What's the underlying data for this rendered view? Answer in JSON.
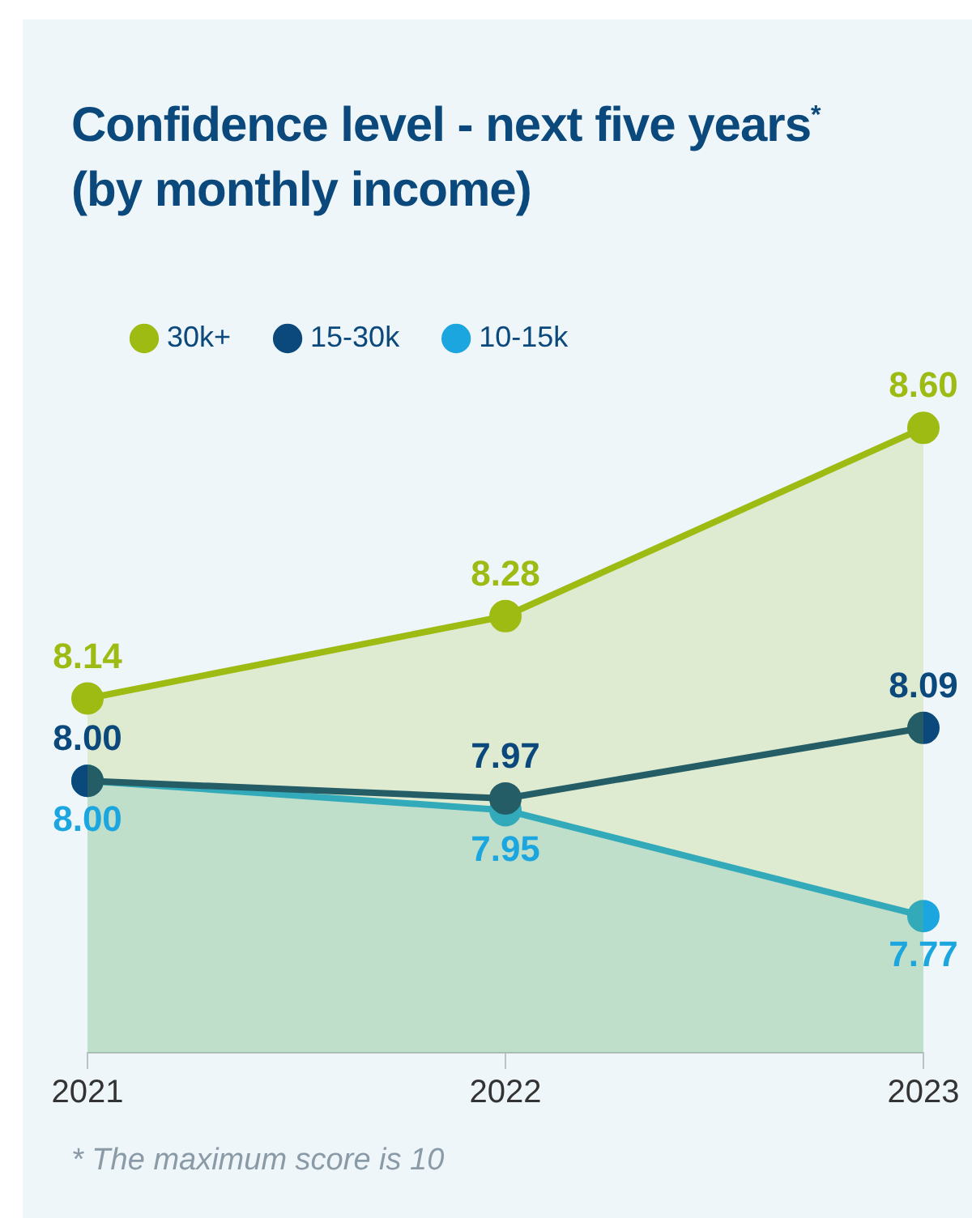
{
  "chart_data": {
    "type": "line",
    "title": "Confidence level - next five years$^{*}$ (by monthly income)",
    "categories": [
      "2021",
      "2022",
      "2023"
    ],
    "series": [
      {
        "name": "10-15k",
        "type": "area",
        "color": "#1ca6df",
        "values": [
          8.0,
          7.95,
          7.77
        ],
        "value_labels": [
          "8.00",
          "7.95",
          "7.77"
        ]
      },
      {
        "name": "15-30k",
        "type": "line",
        "color": "#0b487b",
        "values": [
          8.0,
          7.97,
          8.09
        ],
        "value_labels": [
          "8.00",
          "7.97",
          "8.09"
        ]
      },
      {
        "name": "30k+",
        "type": "area",
        "color": "#9dbb12",
        "values": [
          8.14,
          8.28,
          8.6
        ],
        "value_labels": [
          "8.14",
          "8.28",
          "8.60"
        ]
      }
    ],
    "marker": "circle",
    "line_style": "solid",
    "grid": false,
    "legend": "top left",
    "tick_labels": "x",
    "annotations": [
      "* The maximum score is 10"
    ]
  }
}
